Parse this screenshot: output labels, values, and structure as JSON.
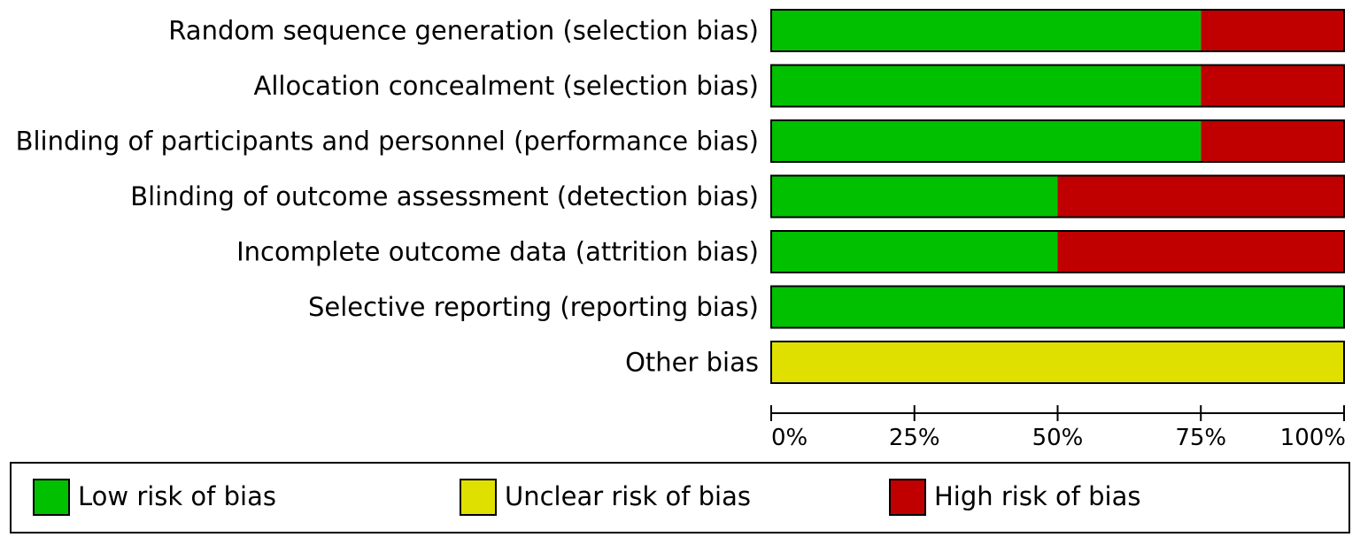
{
  "chart_data": {
    "type": "bar",
    "orientation": "horizontal",
    "stacked": true,
    "categories": [
      "Random sequence generation (selection bias)",
      "Allocation concealment (selection bias)",
      "Blinding of participants and personnel (performance bias)",
      "Blinding of outcome assessment (detection bias)",
      "Incomplete outcome data (attrition bias)",
      "Selective reporting (reporting bias)",
      "Other bias"
    ],
    "series": [
      {
        "name": "Low risk of bias",
        "color": "#00c000",
        "values": [
          75,
          75,
          75,
          50,
          50,
          100,
          0
        ]
      },
      {
        "name": "Unclear risk of bias",
        "color": "#e0e000",
        "values": [
          0,
          0,
          0,
          0,
          0,
          0,
          100
        ]
      },
      {
        "name": "High risk of bias",
        "color": "#c00000",
        "values": [
          25,
          25,
          25,
          50,
          50,
          0,
          0
        ]
      }
    ],
    "xlim": [
      0,
      100
    ],
    "xticks": [
      0,
      25,
      50,
      75,
      100
    ],
    "xtick_labels": [
      "0%",
      "25%",
      "50%",
      "75%",
      "100%"
    ],
    "legend": {
      "placement": "bottom",
      "items": [
        "Low risk of bias",
        "Unclear risk of bias",
        "High risk of bias"
      ]
    }
  }
}
